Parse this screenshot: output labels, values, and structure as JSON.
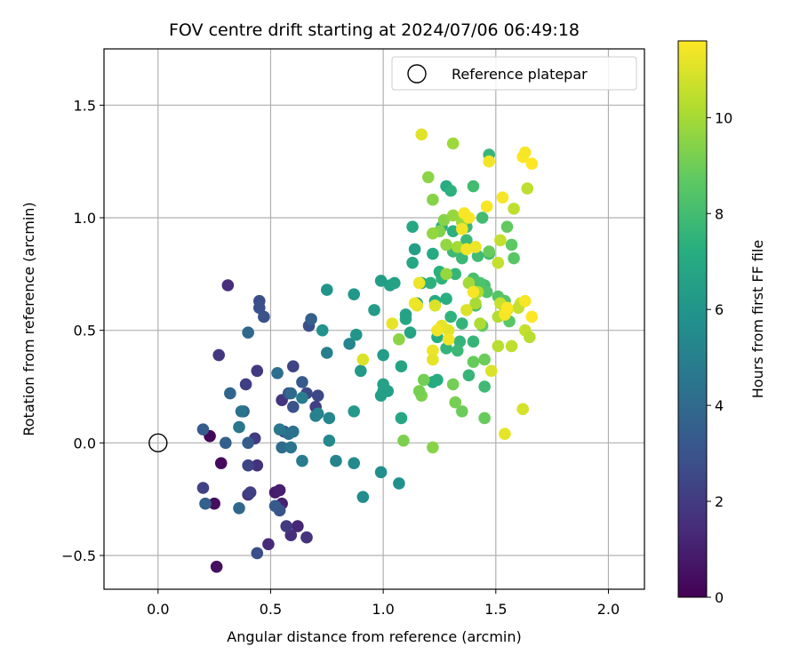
{
  "chart_data": {
    "type": "scatter",
    "title": "FOV centre drift starting at 2024/07/06 06:49:18",
    "xlabel": "Angular distance from reference (arcmin)",
    "ylabel": "Rotation from reference (arcmin)",
    "xlim": [
      -0.24,
      2.16
    ],
    "ylim": [
      -0.65,
      1.75
    ],
    "xticks": [
      0.0,
      0.5,
      1.0,
      1.5,
      2.0
    ],
    "yticks": [
      -0.5,
      0.0,
      0.5,
      1.0,
      1.5
    ],
    "xtick_labels": [
      "0.0",
      "0.5",
      "1.0",
      "1.5",
      "2.0"
    ],
    "ytick_labels": [
      "−0.5",
      "0.0",
      "0.5",
      "1.0",
      "1.5"
    ],
    "grid": true,
    "legend_position": "top-right",
    "reference": {
      "label": "Reference platepar",
      "x": 0.0,
      "y": 0.0
    },
    "colorbar": {
      "label": "Hours from first FF file",
      "range": [
        0,
        11.6
      ],
      "ticks": [
        0,
        2,
        4,
        6,
        8,
        10
      ],
      "tick_labels": [
        "0",
        "2",
        "4",
        "6",
        "8",
        "10"
      ],
      "colormap": "viridis"
    },
    "points": [
      {
        "x": 0.23,
        "y": 0.03,
        "h": 0.2
      },
      {
        "x": 0.28,
        "y": -0.09,
        "h": 0.3
      },
      {
        "x": 0.25,
        "y": -0.27,
        "h": 0.4
      },
      {
        "x": 0.26,
        "y": -0.55,
        "h": 0.5
      },
      {
        "x": 0.52,
        "y": -0.22,
        "h": 0.9
      },
      {
        "x": 0.54,
        "y": -0.21,
        "h": 1.0
      },
      {
        "x": 0.55,
        "y": -0.27,
        "h": 1.1
      },
      {
        "x": 0.62,
        "y": -0.37,
        "h": 1.3
      },
      {
        "x": 0.49,
        "y": -0.45,
        "h": 1.4
      },
      {
        "x": 0.59,
        "y": -0.41,
        "h": 1.6
      },
      {
        "x": 0.66,
        "y": -0.42,
        "h": 1.7
      },
      {
        "x": 0.27,
        "y": 0.39,
        "h": 1.9
      },
      {
        "x": 0.31,
        "y": 0.7,
        "h": 1.5
      },
      {
        "x": 0.44,
        "y": 0.32,
        "h": 2.0
      },
      {
        "x": 0.55,
        "y": 0.19,
        "h": 1.8
      },
      {
        "x": 0.4,
        "y": -0.23,
        "h": 1.8
      },
      {
        "x": 0.44,
        "y": -0.1,
        "h": 1.7
      },
      {
        "x": 0.43,
        "y": 0.02,
        "h": 2.1
      },
      {
        "x": 0.39,
        "y": 0.26,
        "h": 2.2
      },
      {
        "x": 0.2,
        "y": -0.2,
        "h": 2.3
      },
      {
        "x": 0.4,
        "y": -0.1,
        "h": 2.4
      },
      {
        "x": 0.41,
        "y": -0.22,
        "h": 2.2
      },
      {
        "x": 0.6,
        "y": 0.34,
        "h": 2.4
      },
      {
        "x": 0.57,
        "y": -0.37,
        "h": 2.0
      },
      {
        "x": 0.44,
        "y": -0.49,
        "h": 2.8
      },
      {
        "x": 0.45,
        "y": 0.63,
        "h": 2.8
      },
      {
        "x": 0.45,
        "y": 0.6,
        "h": 2.9
      },
      {
        "x": 0.47,
        "y": 0.56,
        "h": 3.0
      },
      {
        "x": 0.56,
        "y": 0.05,
        "h": 2.7
      },
      {
        "x": 0.58,
        "y": 0.22,
        "h": 2.9
      },
      {
        "x": 0.6,
        "y": 0.16,
        "h": 3.0
      },
      {
        "x": 0.64,
        "y": 0.27,
        "h": 3.3
      },
      {
        "x": 0.54,
        "y": -0.3,
        "h": 3.0
      },
      {
        "x": 0.52,
        "y": -0.28,
        "h": 3.3
      },
      {
        "x": 0.71,
        "y": 0.21,
        "h": 2.5
      },
      {
        "x": 0.66,
        "y": 0.22,
        "h": 2.6
      },
      {
        "x": 0.7,
        "y": 0.16,
        "h": 2.2
      },
      {
        "x": 0.67,
        "y": 0.52,
        "h": 2.8
      },
      {
        "x": 0.68,
        "y": 0.55,
        "h": 3.6
      },
      {
        "x": 0.4,
        "y": 0.0,
        "h": 3.4
      },
      {
        "x": 0.38,
        "y": 0.14,
        "h": 3.7
      },
      {
        "x": 0.36,
        "y": -0.29,
        "h": 3.9
      },
      {
        "x": 0.3,
        "y": 0.0,
        "h": 3.6
      },
      {
        "x": 0.32,
        "y": 0.22,
        "h": 3.8
      },
      {
        "x": 0.2,
        "y": 0.06,
        "h": 3.4
      },
      {
        "x": 0.21,
        "y": -0.27,
        "h": 3.6
      },
      {
        "x": 0.4,
        "y": 0.49,
        "h": 3.9
      },
      {
        "x": 0.59,
        "y": 0.22,
        "h": 4.0
      },
      {
        "x": 0.55,
        "y": -0.02,
        "h": 4.1
      },
      {
        "x": 0.53,
        "y": 0.31,
        "h": 4.2
      },
      {
        "x": 0.58,
        "y": 0.04,
        "h": 4.3
      },
      {
        "x": 0.6,
        "y": 0.05,
        "h": 4.4
      },
      {
        "x": 0.37,
        "y": 0.14,
        "h": 4.5
      },
      {
        "x": 0.36,
        "y": 0.07,
        "h": 4.6
      },
      {
        "x": 0.54,
        "y": 0.06,
        "h": 4.7
      },
      {
        "x": 0.59,
        "y": -0.02,
        "h": 4.5
      },
      {
        "x": 0.64,
        "y": -0.08,
        "h": 4.8
      },
      {
        "x": 0.64,
        "y": 0.2,
        "h": 4.9
      },
      {
        "x": 0.7,
        "y": 0.12,
        "h": 5.0
      },
      {
        "x": 0.75,
        "y": 0.4,
        "h": 5.0
      },
      {
        "x": 0.71,
        "y": 0.13,
        "h": 5.1
      },
      {
        "x": 0.76,
        "y": 0.11,
        "h": 5.3
      },
      {
        "x": 0.79,
        "y": -0.08,
        "h": 5.2
      },
      {
        "x": 0.85,
        "y": 0.44,
        "h": 5.3
      },
      {
        "x": 0.76,
        "y": 0.01,
        "h": 5.4
      },
      {
        "x": 0.87,
        "y": -0.09,
        "h": 5.5
      },
      {
        "x": 0.91,
        "y": -0.24,
        "h": 5.6
      },
      {
        "x": 0.99,
        "y": -0.13,
        "h": 5.7
      },
      {
        "x": 1.07,
        "y": -0.18,
        "h": 5.8
      },
      {
        "x": 0.73,
        "y": 0.5,
        "h": 5.9
      },
      {
        "x": 0.75,
        "y": 0.68,
        "h": 6.0
      },
      {
        "x": 0.87,
        "y": 0.66,
        "h": 6.1
      },
      {
        "x": 0.87,
        "y": 0.14,
        "h": 6.2
      },
      {
        "x": 0.96,
        "y": 0.59,
        "h": 6.3
      },
      {
        "x": 0.88,
        "y": 0.48,
        "h": 6.0
      },
      {
        "x": 0.9,
        "y": 0.32,
        "h": 6.2
      },
      {
        "x": 1.0,
        "y": 0.39,
        "h": 6.4
      },
      {
        "x": 0.99,
        "y": 0.21,
        "h": 6.5
      },
      {
        "x": 1.0,
        "y": 0.23,
        "h": 6.6
      },
      {
        "x": 1.02,
        "y": 0.23,
        "h": 6.5
      },
      {
        "x": 1.0,
        "y": 0.26,
        "h": 6.7
      },
      {
        "x": 1.03,
        "y": 0.7,
        "h": 6.6
      },
      {
        "x": 0.99,
        "y": 0.72,
        "h": 6.4
      },
      {
        "x": 1.05,
        "y": 0.71,
        "h": 6.7
      },
      {
        "x": 1.08,
        "y": 0.34,
        "h": 6.8
      },
      {
        "x": 1.08,
        "y": 0.11,
        "h": 6.9
      },
      {
        "x": 1.1,
        "y": 0.55,
        "h": 7.0
      },
      {
        "x": 1.1,
        "y": 0.57,
        "h": 6.7
      },
      {
        "x": 1.12,
        "y": 0.49,
        "h": 6.8
      },
      {
        "x": 1.15,
        "y": 0.62,
        "h": 6.6
      },
      {
        "x": 1.14,
        "y": 0.86,
        "h": 6.5
      },
      {
        "x": 1.13,
        "y": 0.8,
        "h": 6.9
      },
      {
        "x": 1.13,
        "y": 0.96,
        "h": 7.0
      },
      {
        "x": 1.17,
        "y": 0.71,
        "h": 7.0
      },
      {
        "x": 1.22,
        "y": 0.84,
        "h": 7.1
      },
      {
        "x": 1.23,
        "y": 0.63,
        "h": 7.1
      },
      {
        "x": 1.24,
        "y": 0.47,
        "h": 7.2
      },
      {
        "x": 1.22,
        "y": 0.27,
        "h": 7.1
      },
      {
        "x": 1.24,
        "y": 0.28,
        "h": 7.2
      },
      {
        "x": 1.21,
        "y": 0.71,
        "h": 7.4
      },
      {
        "x": 1.26,
        "y": 0.96,
        "h": 7.3
      },
      {
        "x": 1.28,
        "y": 1.14,
        "h": 7.2
      },
      {
        "x": 1.3,
        "y": 1.12,
        "h": 7.4
      },
      {
        "x": 1.31,
        "y": 0.94,
        "h": 7.4
      },
      {
        "x": 1.26,
        "y": 0.73,
        "h": 7.5
      },
      {
        "x": 1.25,
        "y": 0.76,
        "h": 7.4
      },
      {
        "x": 1.28,
        "y": 0.64,
        "h": 7.3
      },
      {
        "x": 1.3,
        "y": 0.56,
        "h": 7.5
      },
      {
        "x": 1.35,
        "y": 0.53,
        "h": 7.6
      },
      {
        "x": 1.34,
        "y": 0.45,
        "h": 7.6
      },
      {
        "x": 1.4,
        "y": 0.45,
        "h": 7.7
      },
      {
        "x": 1.28,
        "y": 0.42,
        "h": 7.6
      },
      {
        "x": 1.33,
        "y": 0.41,
        "h": 7.8
      },
      {
        "x": 1.38,
        "y": 0.3,
        "h": 7.7
      },
      {
        "x": 1.45,
        "y": 0.25,
        "h": 7.9
      },
      {
        "x": 1.32,
        "y": 0.75,
        "h": 7.7
      },
      {
        "x": 1.35,
        "y": 0.82,
        "h": 7.8
      },
      {
        "x": 1.31,
        "y": 0.85,
        "h": 7.9
      },
      {
        "x": 1.37,
        "y": 0.9,
        "h": 7.8
      },
      {
        "x": 1.37,
        "y": 0.96,
        "h": 7.9
      },
      {
        "x": 1.44,
        "y": 1.0,
        "h": 8.0
      },
      {
        "x": 1.47,
        "y": 0.84,
        "h": 8.0
      },
      {
        "x": 1.42,
        "y": 0.83,
        "h": 8.0
      },
      {
        "x": 1.45,
        "y": 0.7,
        "h": 8.1
      },
      {
        "x": 1.47,
        "y": 1.28,
        "h": 7.7
      },
      {
        "x": 1.4,
        "y": 1.14,
        "h": 8.0
      },
      {
        "x": 1.4,
        "y": 0.73,
        "h": 8.2
      },
      {
        "x": 1.43,
        "y": 0.71,
        "h": 8.3
      },
      {
        "x": 1.41,
        "y": 0.61,
        "h": 8.2
      },
      {
        "x": 1.46,
        "y": 0.67,
        "h": 8.4
      },
      {
        "x": 1.51,
        "y": 0.65,
        "h": 8.5
      },
      {
        "x": 1.54,
        "y": 0.63,
        "h": 8.5
      },
      {
        "x": 1.56,
        "y": 0.54,
        "h": 8.6
      },
      {
        "x": 1.58,
        "y": 0.82,
        "h": 8.6
      },
      {
        "x": 1.57,
        "y": 0.88,
        "h": 8.7
      },
      {
        "x": 1.55,
        "y": 0.96,
        "h": 8.8
      },
      {
        "x": 1.47,
        "y": 0.85,
        "h": 8.9
      },
      {
        "x": 1.44,
        "y": 0.52,
        "h": 8.8
      },
      {
        "x": 1.4,
        "y": 0.36,
        "h": 8.9
      },
      {
        "x": 1.45,
        "y": 0.37,
        "h": 9.0
      },
      {
        "x": 1.45,
        "y": 0.11,
        "h": 8.9
      },
      {
        "x": 1.35,
        "y": 0.14,
        "h": 9.0
      },
      {
        "x": 1.31,
        "y": 0.26,
        "h": 9.1
      },
      {
        "x": 1.32,
        "y": 0.18,
        "h": 9.2
      },
      {
        "x": 1.17,
        "y": 0.21,
        "h": 9.3
      },
      {
        "x": 1.16,
        "y": 0.23,
        "h": 9.2
      },
      {
        "x": 1.18,
        "y": 0.28,
        "h": 9.1
      },
      {
        "x": 1.09,
        "y": 0.01,
        "h": 9.3
      },
      {
        "x": 1.22,
        "y": -0.02,
        "h": 9.5
      },
      {
        "x": 1.07,
        "y": 0.46,
        "h": 9.6
      },
      {
        "x": 1.25,
        "y": 0.94,
        "h": 9.4
      },
      {
        "x": 1.27,
        "y": 0.99,
        "h": 9.5
      },
      {
        "x": 1.22,
        "y": 1.08,
        "h": 9.5
      },
      {
        "x": 1.2,
        "y": 1.18,
        "h": 9.6
      },
      {
        "x": 1.22,
        "y": 0.93,
        "h": 9.7
      },
      {
        "x": 1.28,
        "y": 0.88,
        "h": 9.7
      },
      {
        "x": 1.28,
        "y": 0.75,
        "h": 9.8
      },
      {
        "x": 1.31,
        "y": 1.01,
        "h": 9.8
      },
      {
        "x": 1.31,
        "y": 1.33,
        "h": 9.9
      },
      {
        "x": 1.35,
        "y": 0.98,
        "h": 9.9
      },
      {
        "x": 1.33,
        "y": 0.87,
        "h": 10.0
      },
      {
        "x": 1.38,
        "y": 0.71,
        "h": 10.0
      },
      {
        "x": 1.41,
        "y": 0.62,
        "h": 10.1
      },
      {
        "x": 1.42,
        "y": 0.67,
        "h": 10.2
      },
      {
        "x": 1.43,
        "y": 0.53,
        "h": 10.2
      },
      {
        "x": 1.51,
        "y": 0.56,
        "h": 10.3
      },
      {
        "x": 1.51,
        "y": 0.43,
        "h": 10.4
      },
      {
        "x": 1.54,
        "y": 0.58,
        "h": 10.4
      },
      {
        "x": 1.57,
        "y": 0.43,
        "h": 10.5
      },
      {
        "x": 1.58,
        "y": 1.04,
        "h": 10.5
      },
      {
        "x": 1.52,
        "y": 0.9,
        "h": 10.6
      },
      {
        "x": 1.51,
        "y": 0.8,
        "h": 10.6
      },
      {
        "x": 1.52,
        "y": 0.62,
        "h": 10.7
      },
      {
        "x": 1.55,
        "y": 0.59,
        "h": 10.7
      },
      {
        "x": 1.61,
        "y": 0.62,
        "h": 10.8
      },
      {
        "x": 1.6,
        "y": 0.6,
        "h": 10.6
      },
      {
        "x": 1.64,
        "y": 1.13,
        "h": 10.5
      },
      {
        "x": 1.63,
        "y": 0.5,
        "h": 10.6
      },
      {
        "x": 1.65,
        "y": 0.47,
        "h": 10.4
      },
      {
        "x": 1.62,
        "y": 0.15,
        "h": 10.9
      },
      {
        "x": 1.54,
        "y": 0.04,
        "h": 11.2
      },
      {
        "x": 1.48,
        "y": 0.32,
        "h": 11.0
      },
      {
        "x": 1.37,
        "y": 0.59,
        "h": 11.0
      },
      {
        "x": 1.29,
        "y": 0.5,
        "h": 11.1
      },
      {
        "x": 1.26,
        "y": 0.52,
        "h": 11.2
      },
      {
        "x": 1.23,
        "y": 0.61,
        "h": 11.0
      },
      {
        "x": 1.17,
        "y": 1.37,
        "h": 11.1
      },
      {
        "x": 1.15,
        "y": 0.61,
        "h": 11.2
      },
      {
        "x": 1.14,
        "y": 0.62,
        "h": 11.3
      },
      {
        "x": 1.16,
        "y": 0.71,
        "h": 11.3
      },
      {
        "x": 1.04,
        "y": 0.53,
        "h": 11.2
      },
      {
        "x": 1.22,
        "y": 0.41,
        "h": 11.3
      },
      {
        "x": 1.22,
        "y": 0.37,
        "h": 11.2
      },
      {
        "x": 0.91,
        "y": 0.37,
        "h": 11.0
      },
      {
        "x": 1.24,
        "y": 0.5,
        "h": 11.4
      },
      {
        "x": 1.29,
        "y": 0.46,
        "h": 11.4
      },
      {
        "x": 1.35,
        "y": 0.95,
        "h": 11.4
      },
      {
        "x": 1.36,
        "y": 1.02,
        "h": 11.5
      },
      {
        "x": 1.38,
        "y": 1.0,
        "h": 11.5
      },
      {
        "x": 1.37,
        "y": 0.86,
        "h": 11.4
      },
      {
        "x": 1.41,
        "y": 0.87,
        "h": 11.3
      },
      {
        "x": 1.4,
        "y": 0.67,
        "h": 11.5
      },
      {
        "x": 1.46,
        "y": 1.05,
        "h": 11.5
      },
      {
        "x": 1.47,
        "y": 1.25,
        "h": 11.4
      },
      {
        "x": 1.53,
        "y": 1.09,
        "h": 11.5
      },
      {
        "x": 1.62,
        "y": 1.27,
        "h": 11.6
      },
      {
        "x": 1.63,
        "y": 1.29,
        "h": 11.5
      },
      {
        "x": 1.66,
        "y": 1.24,
        "h": 11.6
      },
      {
        "x": 1.63,
        "y": 0.63,
        "h": 11.5
      },
      {
        "x": 1.66,
        "y": 0.56,
        "h": 11.6
      },
      {
        "x": 1.54,
        "y": 0.57,
        "h": 11.5
      },
      {
        "x": 1.55,
        "y": 0.6,
        "h": 11.6
      }
    ]
  }
}
